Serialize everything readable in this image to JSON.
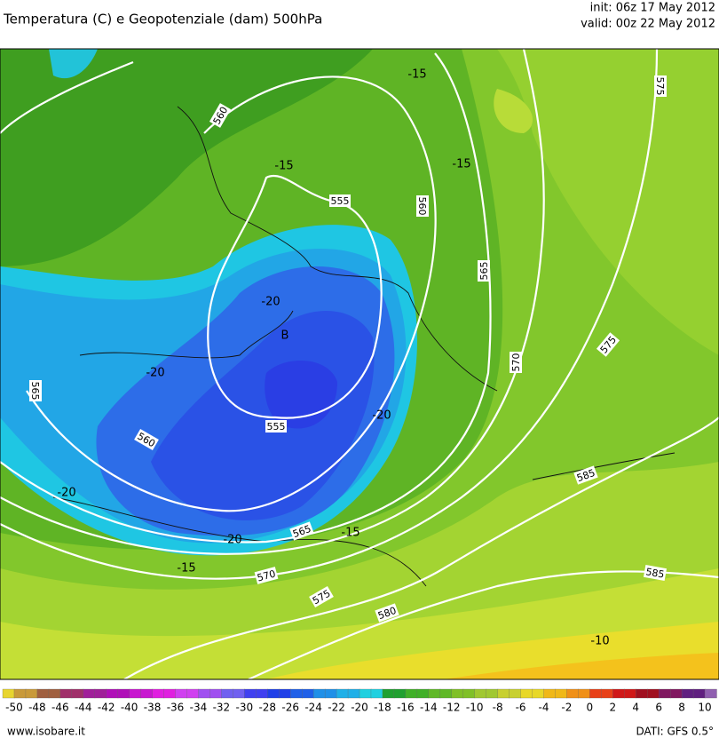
{
  "header": {
    "title": "Temperatura (C) e Geopotenziale (dam) 500hPa",
    "init": "init: 06z 17 May 2012",
    "valid": "valid: 00z 22 May 2012"
  },
  "map": {
    "low": "B",
    "geopotential_labels": [
      "560",
      "555",
      "560",
      "565",
      "570",
      "575",
      "575",
      "565",
      "560",
      "555",
      "565",
      "570",
      "575",
      "580",
      "585",
      "585"
    ],
    "temperature_labels": [
      "-15",
      "-15",
      "-15",
      "-15",
      "-15",
      "-20",
      "-20",
      "-20",
      "-20",
      "-20",
      "-10"
    ]
  },
  "legend": {
    "labels": [
      -50,
      -48,
      -46,
      -44,
      -42,
      -40,
      -38,
      -36,
      -34,
      -32,
      -30,
      -28,
      -26,
      -24,
      -22,
      -20,
      -18,
      -16,
      -14,
      -12,
      -10,
      -8,
      -6,
      -4,
      -2,
      0,
      2,
      4,
      6,
      8,
      10
    ]
  },
  "footer": {
    "site": "www.isobare.it",
    "source": "DATI: GFS 0.5°"
  }
}
